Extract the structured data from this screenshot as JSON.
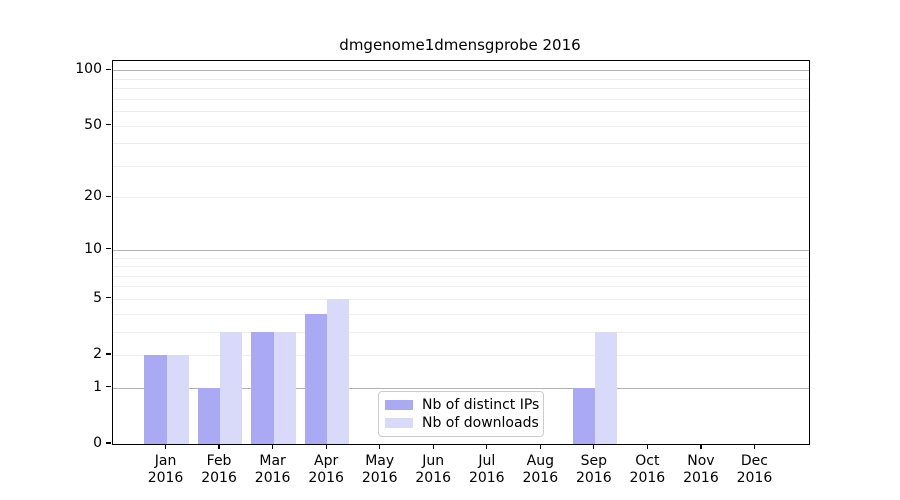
{
  "title": "dmgenome1dmensgprobe 2016",
  "chart_data": {
    "type": "bar",
    "title": "dmgenome1dmensgprobe 2016",
    "categories": [
      "Jan 2016",
      "Feb 2016",
      "Mar 2016",
      "Apr 2016",
      "May 2016",
      "Jun 2016",
      "Jul 2016",
      "Aug 2016",
      "Sep 2016",
      "Oct 2016",
      "Nov 2016",
      "Dec 2016"
    ],
    "x_tick_months": [
      "Jan",
      "Feb",
      "Mar",
      "Apr",
      "May",
      "Jun",
      "Jul",
      "Aug",
      "Sep",
      "Oct",
      "Nov",
      "Dec"
    ],
    "x_tick_year": "2016",
    "series": [
      {
        "name": "Nb of distinct IPs",
        "color": "#a9a9f4",
        "values": [
          2,
          1,
          3,
          4,
          0,
          0,
          0,
          0,
          1,
          0,
          0,
          0
        ]
      },
      {
        "name": "Nb of downloads",
        "color": "#d9d9fa",
        "values": [
          2,
          3,
          3,
          5,
          0,
          0,
          0,
          0,
          3,
          0,
          0,
          0
        ]
      }
    ],
    "yaxis": {
      "scale": "log10(1+y)",
      "range": [
        0,
        100
      ],
      "tick_labels": [
        "0",
        "1",
        "2",
        "5",
        "10",
        "20",
        "50",
        "100"
      ],
      "tick_values": [
        0,
        1,
        2,
        5,
        10,
        20,
        50,
        100
      ],
      "major_gridlines": [
        1,
        10,
        100
      ],
      "minor_gridlines": [
        2,
        3,
        4,
        5,
        6,
        7,
        8,
        9,
        20,
        30,
        40,
        50,
        60,
        70,
        80,
        90
      ]
    },
    "grid": true,
    "legend_position": "lower-center-inside"
  },
  "colors": {
    "bar_distinct_ips": "#a9a9f4",
    "bar_downloads": "#d9d9fa",
    "major_grid": "#b3b3b3",
    "minor_grid": "#ededed",
    "axis": "#000000",
    "background": "#ffffff",
    "legend_border": "#cccccc"
  }
}
